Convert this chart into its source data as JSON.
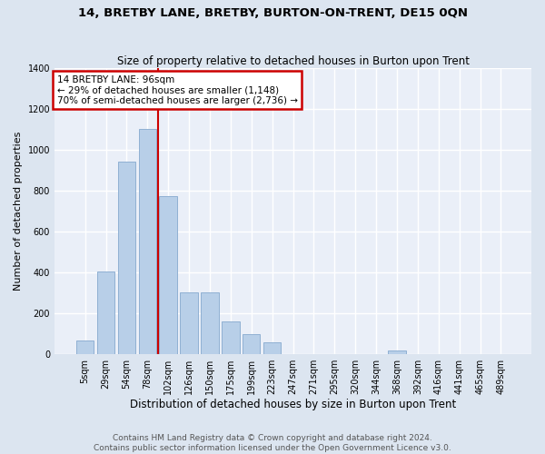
{
  "title": "14, BRETBY LANE, BRETBY, BURTON-ON-TRENT, DE15 0QN",
  "subtitle": "Size of property relative to detached houses in Burton upon Trent",
  "xlabel": "Distribution of detached houses by size in Burton upon Trent",
  "ylabel": "Number of detached properties",
  "footnote1": "Contains HM Land Registry data © Crown copyright and database right 2024.",
  "footnote2": "Contains public sector information licensed under the Open Government Licence v3.0.",
  "annotation_title": "14 BRETBY LANE: 96sqm",
  "annotation_line1": "← 29% of detached houses are smaller (1,148)",
  "annotation_line2": "70% of semi-detached houses are larger (2,736) →",
  "categories": [
    "5sqm",
    "29sqm",
    "54sqm",
    "78sqm",
    "102sqm",
    "126sqm",
    "150sqm",
    "175sqm",
    "199sqm",
    "223sqm",
    "247sqm",
    "271sqm",
    "295sqm",
    "320sqm",
    "344sqm",
    "368sqm",
    "392sqm",
    "416sqm",
    "441sqm",
    "465sqm",
    "489sqm"
  ],
  "values": [
    65,
    405,
    940,
    1100,
    770,
    300,
    300,
    160,
    95,
    55,
    0,
    0,
    0,
    0,
    0,
    15,
    0,
    0,
    0,
    0,
    0
  ],
  "bar_color": "#b8cfe8",
  "bar_edge_color": "#8fb0d3",
  "vline_x_index": 3,
  "vline_color": "#cc0000",
  "bg_color": "#dce5f0",
  "plot_bg_color": "#eaeff8",
  "grid_color": "#ffffff",
  "annotation_box_facecolor": "#ffffff",
  "annotation_box_edgecolor": "#cc0000",
  "ylim": [
    0,
    1400
  ],
  "yticks": [
    0,
    200,
    400,
    600,
    800,
    1000,
    1200,
    1400
  ],
  "title_fontsize": 9.5,
  "subtitle_fontsize": 8.5,
  "ylabel_fontsize": 8,
  "xlabel_fontsize": 8.5,
  "tick_fontsize": 7,
  "annot_fontsize": 7.5,
  "footer_fontsize": 6.5
}
